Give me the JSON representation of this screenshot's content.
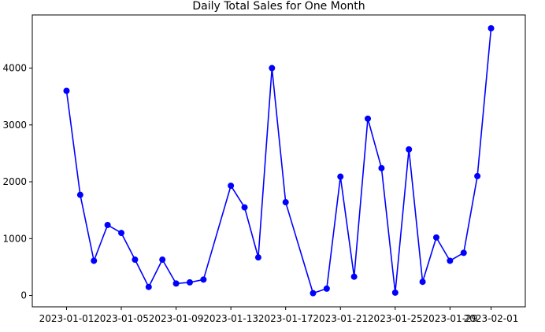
{
  "chart_data": {
    "type": "line",
    "title": "Daily Total Sales for One Month",
    "xlabel": "",
    "ylabel": "",
    "x_dates": [
      "2023-01-01",
      "2023-01-02",
      "2023-01-03",
      "2023-01-04",
      "2023-01-05",
      "2023-01-06",
      "2023-01-07",
      "2023-01-08",
      "2023-01-09",
      "2023-01-10",
      "2023-01-11",
      "2023-01-13",
      "2023-01-14",
      "2023-01-15",
      "2023-01-16",
      "2023-01-17",
      "2023-01-19",
      "2023-01-20",
      "2023-01-21",
      "2023-01-22",
      "2023-01-23",
      "2023-01-24",
      "2023-01-25",
      "2023-01-26",
      "2023-01-27",
      "2023-01-28",
      "2023-01-29",
      "2023-01-30",
      "2023-01-31",
      "2023-02-01"
    ],
    "series": [
      {
        "values": [
          3600,
          1770,
          610,
          1240,
          1100,
          630,
          150,
          630,
          210,
          230,
          280,
          1930,
          1550,
          670,
          4000,
          1640,
          40,
          120,
          2090,
          330,
          3110,
          2240,
          50,
          2570,
          240,
          1020,
          610,
          750,
          2100,
          4700
        ],
        "color": "#0000ff"
      }
    ],
    "xaxis": {
      "range": [
        "2022-12-29T12:00",
        "2023-02-03T12:00"
      ],
      "ticks": [
        "2023-01-01",
        "2023-01-05",
        "2023-01-09",
        "2023-01-13",
        "2023-01-17",
        "2023-01-21",
        "2023-01-25",
        "2023-01-29",
        "2023-02-01"
      ]
    },
    "yaxis": {
      "range": [
        -200,
        4935
      ],
      "ticks": [
        0,
        1000,
        2000,
        3000,
        4000
      ]
    },
    "grid": false,
    "legend": "none",
    "line_color": "#0000ff",
    "marker": "circle"
  }
}
